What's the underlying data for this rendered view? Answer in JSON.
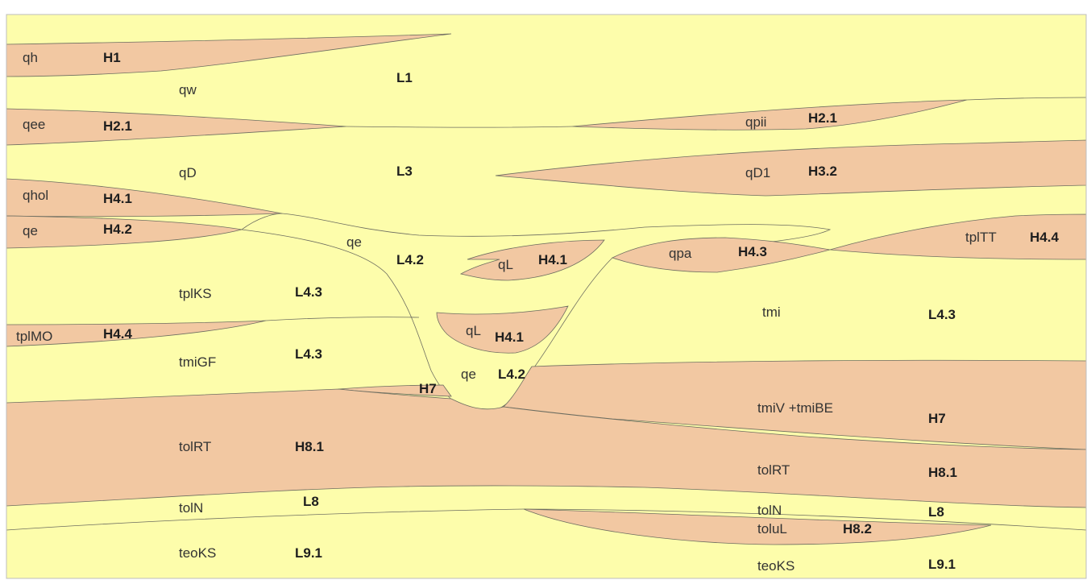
{
  "colors": {
    "yellow_unit": "#fdfdab",
    "brown_unit": "#f2c8a2",
    "boundary": "#6d6d60",
    "frame": "#bdbdbd"
  },
  "labels": {
    "qh": "qh",
    "H1": "H1",
    "qw": "qw",
    "L1": "L1",
    "qee": "qee",
    "H2_1_left": "H2.1",
    "qpii": "qpii",
    "H2_1_right": "H2.1",
    "qD": "qD",
    "L3": "L3",
    "qD1": "qD1",
    "H3_2": "H3.2",
    "qhol": "qhol",
    "H4_1_left": "H4.1",
    "qe_left": "qe",
    "H4_2": "H4.2",
    "qe_center": "qe",
    "L4_2_upper": "L4.2",
    "qL_upper": "qL",
    "H4_1_upper": "H4.1",
    "qpa": "qpa",
    "H4_3": "H4.3",
    "tplTT": "tplTT",
    "H4_4_right": "H4.4",
    "tplKS": "tplKS",
    "L4_3_left": "L4.3",
    "tmi": "tmi",
    "L4_3_right": "L4.3",
    "tplMO": "tplMO",
    "H4_4_left": "H4.4",
    "qL_lower": "qL",
    "H4_1_lower": "H4.1",
    "tmiGF": "tmiGF",
    "L4_3_mid": "L4.3",
    "qe_lower": "qe",
    "L4_2_lower": "L4.2",
    "H7_left": "H7",
    "tmiV_tmiBE": "tmiV +tmiBE",
    "H7_right": "H7",
    "tolRT_left": "tolRT",
    "H8_1_left": "H8.1",
    "tolRT_right": "tolRT",
    "H8_1_right": "H8.1",
    "tolN_left": "tolN",
    "L8_left": "L8",
    "tolN_right": "tolN",
    "L8_right": "L8",
    "toluL": "toluL",
    "H8_2": "H8.2",
    "teoKS_left": "teoKS",
    "L9_1_left": "L9.1",
    "teoKS_right": "teoKS",
    "L9_1_right": "L9.1"
  }
}
